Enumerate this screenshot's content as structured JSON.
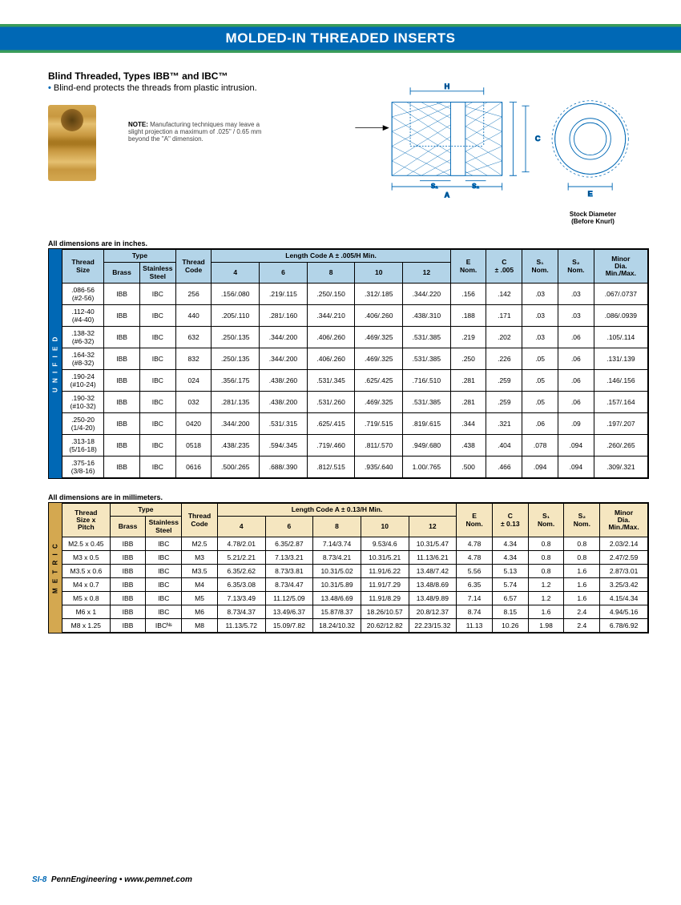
{
  "header": {
    "title": "MOLDED-IN THREADED INSERTS"
  },
  "intro": {
    "title": "Blind Threaded, Types IBB™ and IBC™",
    "bullet": "Blind-end protects the threads from plastic intrusion.",
    "note_label": "NOTE:",
    "note_text": " Manufacturing techniques may leave a slight projection a maximum of .025\" / 0.65 mm beyond the \"A\" dimension."
  },
  "diagram": {
    "labels": {
      "H": "H",
      "C": "C",
      "A": "A",
      "S1": "S₁",
      "S2": "S₂",
      "E": "E"
    },
    "stock": "Stock Diameter\n(Before Knurl)"
  },
  "table1": {
    "caption": "All dimensions are in inches.",
    "side": "U N I F I E D",
    "headers": {
      "thread_size": "Thread\nSize",
      "type": "Type",
      "brass": "Brass",
      "steel": "Stainless\nSteel",
      "code": "Thread\nCode",
      "length": "Length Code A ± .005/H Min.",
      "l4": "4",
      "l6": "6",
      "l8": "8",
      "l10": "10",
      "l12": "12",
      "e": "E\nNom.",
      "c": "C\n± .005",
      "s1": "S₁\nNom.",
      "s2": "S₂\nNom.",
      "minor": "Minor\nDia.\nMin./Max."
    },
    "rows": [
      {
        "ts": ".086-56\n(#2-56)",
        "b": "IBB",
        "s": "IBC",
        "tc": "256",
        "l4": ".156/.080",
        "l6": ".219/.115",
        "l8": ".250/.150",
        "l10": ".312/.185",
        "l12": ".344/.220",
        "e": ".156",
        "c": ".142",
        "s1": ".03",
        "s2": ".03",
        "m": ".067/.0737"
      },
      {
        "ts": ".112-40\n(#4-40)",
        "b": "IBB",
        "s": "IBC",
        "tc": "440",
        "l4": ".205/.110",
        "l6": ".281/.160",
        "l8": ".344/.210",
        "l10": ".406/.260",
        "l12": ".438/.310",
        "e": ".188",
        "c": ".171",
        "s1": ".03",
        "s2": ".03",
        "m": ".086/.0939"
      },
      {
        "ts": ".138-32\n(#6-32)",
        "b": "IBB",
        "s": "IBC",
        "tc": "632",
        "l4": ".250/.135",
        "l6": ".344/.200",
        "l8": ".406/.260",
        "l10": ".469/.325",
        "l12": ".531/.385",
        "e": ".219",
        "c": ".202",
        "s1": ".03",
        "s2": ".06",
        "m": ".105/.114"
      },
      {
        "ts": ".164-32\n(#8-32)",
        "b": "IBB",
        "s": "IBC",
        "tc": "832",
        "l4": ".250/.135",
        "l6": ".344/.200",
        "l8": ".406/.260",
        "l10": ".469/.325",
        "l12": ".531/.385",
        "e": ".250",
        "c": ".226",
        "s1": ".05",
        "s2": ".06",
        "m": ".131/.139"
      },
      {
        "ts": ".190-24\n(#10-24)",
        "b": "IBB",
        "s": "IBC",
        "tc": "024",
        "l4": ".356/.175",
        "l6": ".438/.260",
        "l8": ".531/.345",
        "l10": ".625/.425",
        "l12": ".716/.510",
        "e": ".281",
        "c": ".259",
        "s1": ".05",
        "s2": ".06",
        "m": ".146/.156"
      },
      {
        "ts": ".190-32\n(#10-32)",
        "b": "IBB",
        "s": "IBC",
        "tc": "032",
        "l4": ".281/.135",
        "l6": ".438/.200",
        "l8": ".531/.260",
        "l10": ".469/.325",
        "l12": ".531/.385",
        "e": ".281",
        "c": ".259",
        "s1": ".05",
        "s2": ".06",
        "m": ".157/.164"
      },
      {
        "ts": ".250-20\n(1/4-20)",
        "b": "IBB",
        "s": "IBC",
        "tc": "0420",
        "l4": ".344/.200",
        "l6": ".531/.315",
        "l8": ".625/.415",
        "l10": ".719/.515",
        "l12": ".819/.615",
        "e": ".344",
        "c": ".321",
        "s1": ".06",
        "s2": ".09",
        "m": ".197/.207"
      },
      {
        "ts": ".313-18\n(5/16-18)",
        "b": "IBB",
        "s": "IBC",
        "tc": "0518",
        "l4": ".438/.235",
        "l6": ".594/.345",
        "l8": ".719/.460",
        "l10": ".811/.570",
        "l12": ".949/.680",
        "e": ".438",
        "c": ".404",
        "s1": ".078",
        "s2": ".094",
        "m": ".260/.265"
      },
      {
        "ts": ".375-16\n(3/8-16)",
        "b": "IBB",
        "s": "IBC",
        "tc": "0616",
        "l4": ".500/.265",
        "l6": ".688/.390",
        "l8": ".812/.515",
        "l10": ".935/.640",
        "l12": "1.00/.765",
        "e": ".500",
        "c": ".466",
        "s1": ".094",
        "s2": ".094",
        "m": ".309/.321"
      }
    ]
  },
  "table2": {
    "caption": "All dimensions are in millimeters.",
    "side": "M E T R I C",
    "headers": {
      "thread_size": "Thread\nSize x\nPitch",
      "type": "Type",
      "brass": "Brass",
      "steel": "Stainless\nSteel",
      "code": "Thread\nCode",
      "length": "Length Code A ± 0.13/H Min.",
      "l4": "4",
      "l6": "6",
      "l8": "8",
      "l10": "10",
      "l12": "12",
      "e": "E\nNom.",
      "c": "C\n± 0.13",
      "s1": "S₁\nNom.",
      "s2": "S₂\nNom.",
      "minor": "Minor\nDia.\nMin./Max."
    },
    "rows": [
      {
        "ts": "M2.5 x 0.45",
        "b": "IBB",
        "s": "IBC",
        "tc": "M2.5",
        "l4": "4.78/2.01",
        "l6": "6.35/2.87",
        "l8": "7.14/3.74",
        "l10": "9.53/4.6",
        "l12": "10.31/5.47",
        "e": "4.78",
        "c": "4.34",
        "s1": "0.8",
        "s2": "0.8",
        "m": "2.03/2.14"
      },
      {
        "ts": "M3 x 0.5",
        "b": "IBB",
        "s": "IBC",
        "tc": "M3",
        "l4": "5.21/2.21",
        "l6": "7.13/3.21",
        "l8": "8.73/4.21",
        "l10": "10.31/5.21",
        "l12": "11.13/6.21",
        "e": "4.78",
        "c": "4.34",
        "s1": "0.8",
        "s2": "0.8",
        "m": "2.47/2.59"
      },
      {
        "ts": "M3.5 x 0.6",
        "b": "IBB",
        "s": "IBC",
        "tc": "M3.5",
        "l4": "6.35/2.62",
        "l6": "8.73/3.81",
        "l8": "10.31/5.02",
        "l10": "11.91/6.22",
        "l12": "13.48/7.42",
        "e": "5.56",
        "c": "5.13",
        "s1": "0.8",
        "s2": "1.6",
        "m": "2.87/3.01"
      },
      {
        "ts": "M4 x 0.7",
        "b": "IBB",
        "s": "IBC",
        "tc": "M4",
        "l4": "6.35/3.08",
        "l6": "8.73/4.47",
        "l8": "10.31/5.89",
        "l10": "11.91/7.29",
        "l12": "13.48/8.69",
        "e": "6.35",
        "c": "5.74",
        "s1": "1.2",
        "s2": "1.6",
        "m": "3.25/3.42"
      },
      {
        "ts": "M5 x 0.8",
        "b": "IBB",
        "s": "IBC",
        "tc": "M5",
        "l4": "7.13/3.49",
        "l6": "11.12/5.09",
        "l8": "13.48/6.69",
        "l10": "11.91/8.29",
        "l12": "13.48/9.89",
        "e": "7.14",
        "c": "6.57",
        "s1": "1.2",
        "s2": "1.6",
        "m": "4.15/4.34"
      },
      {
        "ts": "M6 x 1",
        "b": "IBB",
        "s": "IBC",
        "tc": "M6",
        "l4": "8.73/4.37",
        "l6": "13.49/6.37",
        "l8": "15.87/8.37",
        "l10": "18.26/10.57",
        "l12": "20.8/12.37",
        "e": "8.74",
        "c": "8.15",
        "s1": "1.6",
        "s2": "2.4",
        "m": "4.94/5.16"
      },
      {
        "ts": "M8 x 1.25",
        "b": "IBB",
        "s": "IBCᴺˢ",
        "tc": "M8",
        "l4": "11.13/5.72",
        "l6": "15.09/7.82",
        "l8": "18.24/10.32",
        "l10": "20.62/12.82",
        "l12": "22.23/15.32",
        "e": "11.13",
        "c": "10.26",
        "s1": "1.98",
        "s2": "2.4",
        "m": "6.78/6.92"
      }
    ]
  },
  "footer": {
    "page": "SI-8",
    "company": "PennEngineering • www.pemnet.com"
  }
}
